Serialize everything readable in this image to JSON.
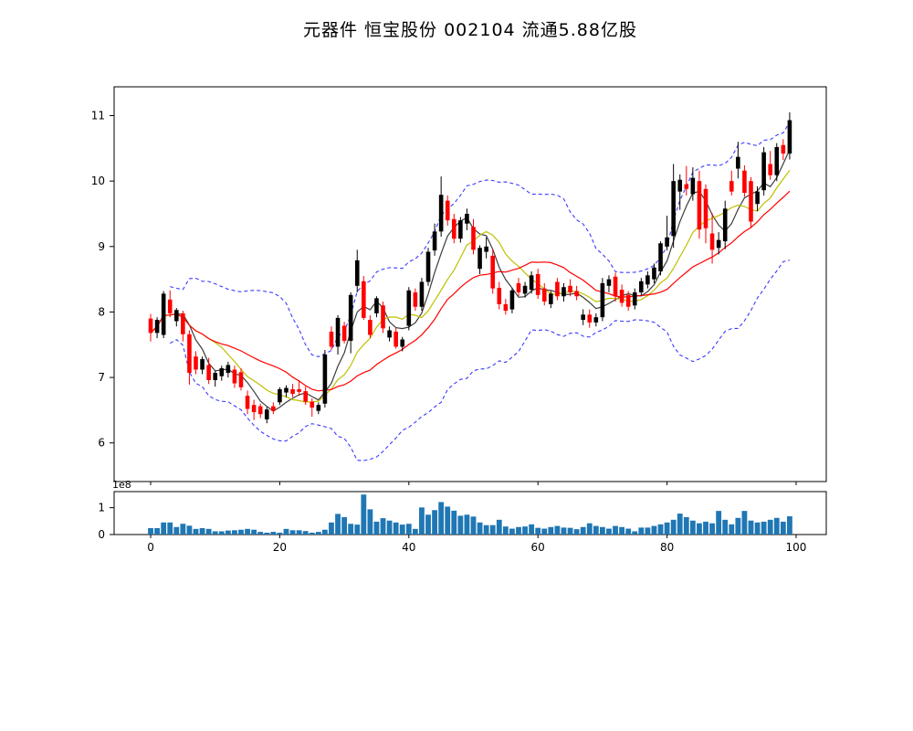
{
  "figure": {
    "title": "元器件 恒宝股份 002104 流通5.88亿股"
  },
  "chart_data": {
    "type": "candlestick",
    "title": "元器件 恒宝股份 002104 流通5.88亿股",
    "legend_position": "none",
    "grid": false,
    "panels": {
      "price": {
        "ylim": [
          5.41,
          11.44
        ],
        "y_ticks": [
          6,
          7,
          8,
          9,
          10,
          11
        ]
      },
      "volume": {
        "ylim": [
          0,
          1.6
        ],
        "y_ticks": [
          0,
          1
        ],
        "scale_label": "1e8"
      }
    },
    "x_axis": {
      "xlim": [
        -5.66,
        104.67
      ],
      "ticks": [
        0,
        20,
        40,
        60,
        80,
        100
      ]
    },
    "overlays": {
      "ma_windows": [
        5,
        10,
        20
      ],
      "bollinger": {
        "window": 20,
        "mult": 2
      }
    },
    "colors": {
      "up": "#000000",
      "down": "#ff0000",
      "ma_short": "#3c3c3c",
      "ma_mid": "#bfbf00",
      "ma_long": "#ff0000",
      "band": "#3b3bff",
      "volume": "#1f77b4",
      "spine": "#000000"
    },
    "ohlc": [
      [
        7.9,
        7.97,
        7.55,
        7.68
      ],
      [
        7.68,
        7.92,
        7.6,
        7.88
      ],
      [
        7.65,
        8.32,
        7.6,
        8.28
      ],
      [
        8.19,
        8.33,
        7.92,
        7.98
      ],
      [
        7.86,
        8.06,
        7.78,
        8.03
      ],
      [
        7.98,
        8.02,
        7.55,
        7.66
      ],
      [
        7.66,
        7.72,
        6.89,
        7.07
      ],
      [
        7.32,
        7.4,
        7.05,
        7.12
      ],
      [
        7.12,
        7.32,
        7.05,
        7.28
      ],
      [
        7.19,
        7.3,
        6.9,
        6.96
      ],
      [
        6.96,
        7.1,
        6.86,
        7.07
      ],
      [
        7.02,
        7.18,
        6.95,
        7.14
      ],
      [
        7.07,
        7.24,
        7.0,
        7.19
      ],
      [
        7.12,
        7.18,
        6.84,
        6.91
      ],
      [
        7.08,
        7.14,
        6.8,
        6.85
      ],
      [
        6.72,
        6.8,
        6.44,
        6.52
      ],
      [
        6.58,
        6.66,
        6.35,
        6.47
      ],
      [
        6.56,
        6.6,
        6.38,
        6.44
      ],
      [
        6.36,
        6.55,
        6.3,
        6.51
      ],
      [
        6.56,
        6.62,
        6.44,
        6.49
      ],
      [
        6.62,
        6.85,
        6.58,
        6.82
      ],
      [
        6.77,
        6.88,
        6.7,
        6.84
      ],
      [
        6.82,
        6.9,
        6.7,
        6.75
      ],
      [
        6.82,
        6.96,
        6.72,
        6.78
      ],
      [
        6.79,
        6.86,
        6.58,
        6.63
      ],
      [
        6.63,
        6.68,
        6.4,
        6.54
      ],
      [
        6.49,
        6.62,
        6.44,
        6.58
      ],
      [
        6.6,
        7.42,
        6.54,
        7.35
      ],
      [
        7.7,
        7.78,
        7.42,
        7.47
      ],
      [
        7.47,
        7.95,
        7.35,
        7.91
      ],
      [
        7.79,
        7.85,
        7.52,
        7.56
      ],
      [
        7.56,
        8.3,
        7.37,
        8.26
      ],
      [
        8.4,
        8.95,
        8.3,
        8.79
      ],
      [
        8.47,
        8.55,
        7.88,
        7.91
      ],
      [
        7.88,
        7.95,
        7.6,
        7.65
      ],
      [
        7.98,
        8.24,
        7.92,
        8.21
      ],
      [
        8.1,
        8.16,
        7.68,
        7.75
      ],
      [
        7.61,
        7.78,
        7.55,
        7.72
      ],
      [
        7.7,
        7.76,
        7.44,
        7.47
      ],
      [
        7.47,
        7.62,
        7.4,
        7.58
      ],
      [
        7.79,
        8.38,
        7.72,
        8.33
      ],
      [
        8.3,
        8.36,
        8.02,
        8.08
      ],
      [
        8.08,
        8.52,
        8.02,
        8.46
      ],
      [
        8.46,
        8.98,
        8.4,
        8.92
      ],
      [
        8.94,
        9.35,
        8.86,
        9.23
      ],
      [
        9.23,
        10.07,
        9.15,
        9.79
      ],
      [
        9.7,
        9.78,
        9.32,
        9.4
      ],
      [
        9.42,
        9.5,
        9.05,
        9.12
      ],
      [
        9.12,
        9.45,
        9.06,
        9.4
      ],
      [
        9.35,
        9.58,
        9.25,
        9.5
      ],
      [
        9.3,
        9.42,
        8.88,
        8.95
      ],
      [
        8.66,
        9.02,
        8.58,
        8.98
      ],
      [
        8.92,
        9.14,
        8.82,
        9.0
      ],
      [
        8.86,
        8.96,
        8.28,
        8.36
      ],
      [
        8.37,
        8.46,
        8.04,
        8.12
      ],
      [
        8.12,
        8.2,
        7.96,
        8.02
      ],
      [
        8.04,
        8.36,
        7.98,
        8.33
      ],
      [
        8.44,
        8.52,
        8.24,
        8.3
      ],
      [
        8.28,
        8.46,
        8.22,
        8.4
      ],
      [
        8.34,
        8.62,
        8.28,
        8.56
      ],
      [
        8.58,
        8.66,
        8.2,
        8.26
      ],
      [
        8.36,
        8.44,
        8.1,
        8.16
      ],
      [
        8.12,
        8.32,
        8.06,
        8.28
      ],
      [
        8.46,
        8.52,
        8.18,
        8.24
      ],
      [
        8.24,
        8.44,
        8.16,
        8.38
      ],
      [
        8.4,
        8.5,
        8.24,
        8.3
      ],
      [
        8.32,
        8.4,
        8.18,
        8.24
      ],
      [
        7.88,
        8.04,
        7.8,
        7.96
      ],
      [
        7.96,
        8.04,
        7.76,
        7.84
      ],
      [
        7.84,
        7.98,
        7.78,
        7.92
      ],
      [
        7.92,
        8.52,
        7.86,
        8.44
      ],
      [
        8.4,
        8.56,
        8.3,
        8.5
      ],
      [
        8.54,
        8.6,
        8.16,
        8.24
      ],
      [
        8.34,
        8.42,
        8.08,
        8.14
      ],
      [
        8.26,
        8.32,
        8.02,
        8.08
      ],
      [
        8.1,
        8.36,
        8.04,
        8.3
      ],
      [
        8.3,
        8.52,
        8.24,
        8.47
      ],
      [
        8.42,
        8.62,
        8.36,
        8.56
      ],
      [
        8.5,
        8.74,
        8.44,
        8.68
      ],
      [
        8.62,
        9.08,
        8.56,
        9.05
      ],
      [
        9.0,
        9.47,
        8.94,
        9.14
      ],
      [
        9.16,
        10.26,
        8.98,
        10.0
      ],
      [
        9.84,
        10.1,
        9.56,
        10.02
      ],
      [
        9.95,
        10.23,
        9.78,
        9.88
      ],
      [
        9.8,
        10.21,
        9.7,
        10.05
      ],
      [
        10.0,
        10.16,
        9.12,
        9.26
      ],
      [
        9.88,
        9.95,
        9.05,
        9.28
      ],
      [
        9.2,
        9.51,
        8.74,
        8.95
      ],
      [
        8.98,
        9.22,
        8.88,
        9.1
      ],
      [
        9.08,
        9.7,
        8.96,
        9.58
      ],
      [
        10.0,
        10.16,
        9.78,
        9.84
      ],
      [
        10.19,
        10.6,
        10.04,
        10.37
      ],
      [
        10.16,
        10.24,
        9.76,
        9.82
      ],
      [
        10.0,
        10.06,
        9.28,
        9.38
      ],
      [
        9.65,
        9.92,
        9.54,
        9.84
      ],
      [
        9.86,
        10.52,
        9.78,
        10.44
      ],
      [
        10.26,
        10.46,
        10.02,
        10.09
      ],
      [
        10.09,
        10.58,
        10.0,
        10.52
      ],
      [
        10.55,
        10.64,
        10.32,
        10.42
      ],
      [
        10.42,
        11.05,
        10.33,
        10.93
      ]
    ],
    "volume_1e8": [
      0.24,
      0.24,
      0.45,
      0.45,
      0.28,
      0.4,
      0.33,
      0.21,
      0.24,
      0.21,
      0.12,
      0.12,
      0.15,
      0.16,
      0.18,
      0.21,
      0.18,
      0.1,
      0.07,
      0.1,
      0.07,
      0.21,
      0.16,
      0.16,
      0.13,
      0.07,
      0.1,
      0.18,
      0.45,
      0.77,
      0.65,
      0.4,
      0.37,
      1.49,
      0.94,
      0.48,
      0.61,
      0.52,
      0.45,
      0.37,
      0.4,
      0.21,
      1.01,
      0.74,
      0.91,
      1.21,
      1.04,
      0.89,
      0.7,
      0.74,
      0.67,
      0.45,
      0.35,
      0.35,
      0.55,
      0.3,
      0.22,
      0.28,
      0.3,
      0.38,
      0.25,
      0.22,
      0.28,
      0.32,
      0.26,
      0.25,
      0.2,
      0.28,
      0.42,
      0.32,
      0.28,
      0.22,
      0.32,
      0.28,
      0.22,
      0.12,
      0.26,
      0.26,
      0.32,
      0.38,
      0.45,
      0.55,
      0.78,
      0.65,
      0.52,
      0.42,
      0.48,
      0.42,
      0.88,
      0.55,
      0.38,
      0.62,
      0.88,
      0.52,
      0.45,
      0.48,
      0.55,
      0.62,
      0.48,
      0.68
    ]
  }
}
